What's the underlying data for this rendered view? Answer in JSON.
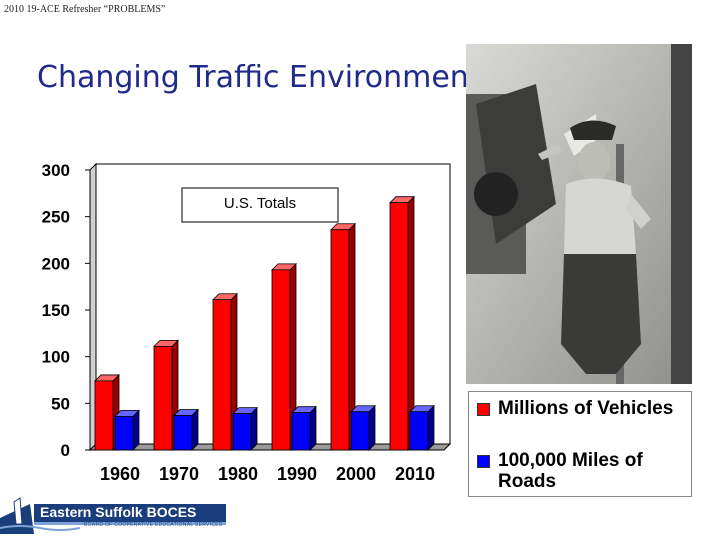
{
  "slide": {
    "header_note": "2010 19-ACE Refresher “PROBLEMS”",
    "title": "Changing Traffic Environment"
  },
  "logo": {
    "name": "Eastern Suffolk BOCES",
    "tagline": "BOARD OF COOPERATIVE EDUCATIONAL SERVICES"
  },
  "photo": {
    "description": "Black and white photograph of a traffic officer directing with outstretched arm"
  },
  "chart_data": {
    "type": "bar",
    "title": "U.S. Totals",
    "categories": [
      "1960",
      "1970",
      "1980",
      "1990",
      "2000",
      "2010"
    ],
    "series": [
      {
        "name": "Millions of Vehicles",
        "color": "#ff0000",
        "values": [
          74,
          111,
          161,
          193,
          236,
          265
        ]
      },
      {
        "name": "100,000 Miles of Roads",
        "color": "#0000ff",
        "values": [
          36,
          37,
          39,
          40,
          41,
          41
        ]
      }
    ],
    "ylim": [
      0,
      300
    ],
    "yticks": [
      0,
      50,
      100,
      150,
      200,
      250,
      300
    ],
    "xlabel": "",
    "ylabel": "",
    "grid": false,
    "legend_position": "right"
  }
}
